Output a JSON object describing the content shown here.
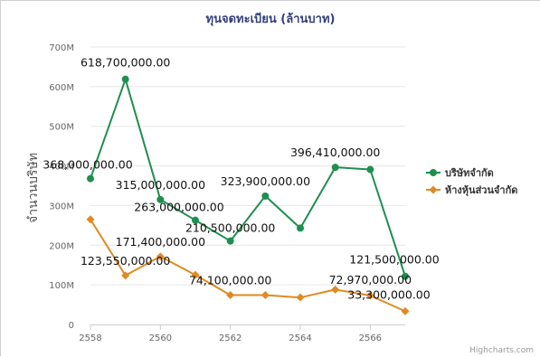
{
  "chart_data": {
    "type": "line",
    "title": "ทุนจดทะเบียน (ล้านบาท)",
    "ylabel": "จำนวนบริษัท",
    "xlabel": "",
    "ylim": [
      0,
      700000000
    ],
    "y_tick_labels": [
      "0",
      "100M",
      "200M",
      "300M",
      "400M",
      "500M",
      "600M",
      "700M"
    ],
    "y_tick_values": [
      0,
      100000000,
      200000000,
      300000000,
      400000000,
      500000000,
      600000000,
      700000000
    ],
    "xlim": [
      2558,
      2567
    ],
    "x_tick_labels": [
      "2558",
      "2560",
      "2562",
      "2564",
      "2566"
    ],
    "x_tick_values": [
      2558,
      2560,
      2562,
      2564,
      2566
    ],
    "grid": true,
    "legend_position": "right",
    "x": [
      2558,
      2559,
      2560,
      2561,
      2562,
      2563,
      2564,
      2565,
      2566,
      2567
    ],
    "series": [
      {
        "name": "บริษัทจำกัด",
        "color": "#1e8f4e",
        "marker": "circle",
        "values": [
          368000000,
          618700000,
          315000000,
          263000000,
          210500000,
          323900000,
          243000000,
          396410000,
          391000000,
          121500000
        ],
        "labels": [
          "368,000,000.00",
          "618,700,000.00",
          "315,000,000.00",
          "263,000,000.00",
          "210,500,000.00",
          "323,900,000.00",
          null,
          "396,410,000.00",
          null,
          "121,500,000.00"
        ]
      },
      {
        "name": "ห้างหุ้นส่วนจำกัด",
        "color": "#e08a23",
        "marker": "diamond",
        "values": [
          265000000,
          123550000,
          171400000,
          125000000,
          74100000,
          74000000,
          68000000,
          88000000,
          72970000,
          33300000
        ],
        "labels": [
          null,
          "123,550,000.00",
          "171,400,000.00",
          null,
          "74,100,000.00",
          null,
          null,
          null,
          "72,970,000.00",
          "33,300,000.00"
        ]
      }
    ],
    "credit": "Highcharts.com"
  }
}
